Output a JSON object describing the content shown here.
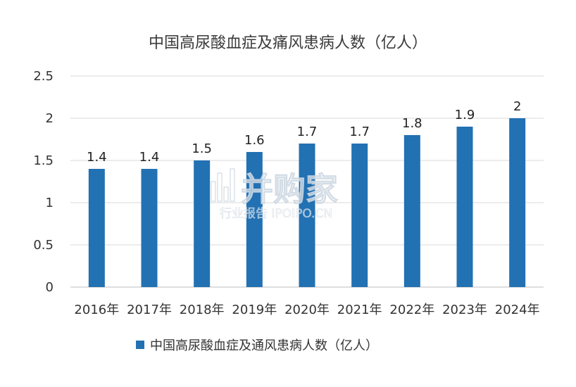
{
  "chart_data": {
    "type": "bar",
    "title": "中国高尿酸血症及痛风患病人数（亿人）",
    "categories": [
      "2016年",
      "2017年",
      "2018年",
      "2019年",
      "2020年",
      "2021年",
      "2022年",
      "2023年",
      "2024年"
    ],
    "series": [
      {
        "name": "中国高尿酸血症及通风患病人数（亿人）",
        "values": [
          1.4,
          1.4,
          1.5,
          1.6,
          1.7,
          1.7,
          1.8,
          1.9,
          2
        ],
        "color": "#2271b3"
      }
    ],
    "ylim": [
      0,
      2.5
    ],
    "yticks": [
      "0",
      "0.5",
      "1",
      "1.5",
      "2",
      "2.5"
    ],
    "data_labels": [
      "1.4",
      "1.4",
      "1.5",
      "1.6",
      "1.7",
      "1.7",
      "1.8",
      "1.9",
      "2"
    ],
    "grid": true,
    "legend_position": "bottom"
  },
  "watermark": {
    "main": "并购家",
    "sub": "行业报告 IPOIPO.CN"
  }
}
